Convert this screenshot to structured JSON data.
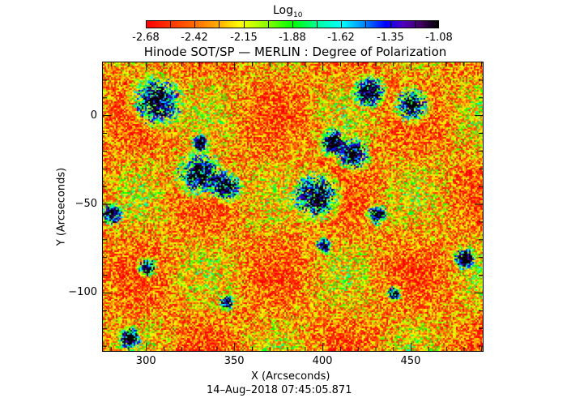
{
  "colorbar": {
    "label": "Log",
    "label_sub": "10",
    "ticks": [
      "-2.68",
      "-2.42",
      "-2.15",
      "-1.88",
      "-1.62",
      "-1.35",
      "-1.08"
    ],
    "range": [
      -2.68,
      -1.08
    ]
  },
  "chart_data": {
    "type": "heatmap",
    "title": "Hinode SOT/SP — MERLIN : Degree of Polarization",
    "xlabel": "X (Arcseconds)",
    "ylabel": "Y (Arcseconds)",
    "xlim": [
      275.3,
      490.6
    ],
    "ylim": [
      -132.7,
      30
    ],
    "xticks": [
      300,
      350,
      400,
      450
    ],
    "yticks": [
      0,
      -50,
      -100
    ],
    "xtick_labels": [
      "300",
      "350",
      "400",
      "450"
    ],
    "ytick_labels": [
      "0",
      "−50",
      "−100"
    ],
    "colormap": "rainbow red-to-black",
    "value_scale": "log10"
  },
  "footer": {
    "timestamp": "14–Aug–2018 07:45:05.871"
  }
}
